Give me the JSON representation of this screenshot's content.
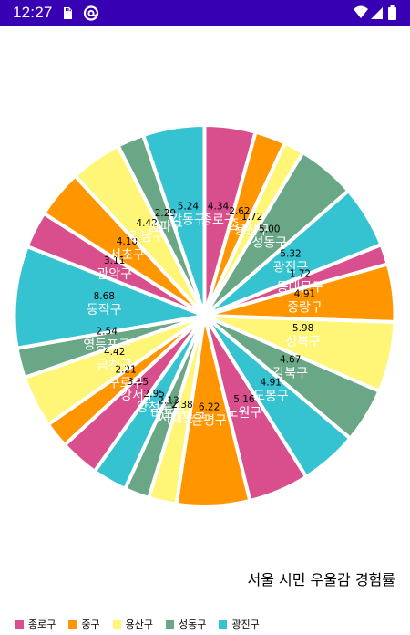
{
  "status_bar": {
    "time": "12:27",
    "left_icons": [
      "sd-card-icon",
      "vpn-at-icon"
    ],
    "right_icons": [
      "wifi-icon",
      "signal-icon",
      "battery-icon"
    ]
  },
  "chart_data": {
    "type": "pie",
    "title": "서울 시민 우울감 경험률",
    "colors": [
      "#d94e8c",
      "#ff9600",
      "#fff576",
      "#6aa786",
      "#35c2d1"
    ],
    "slice_colors": [
      "#d94e8c",
      "#ff9600",
      "#fff576",
      "#6aa786",
      "#35c2d1",
      "#d94e8c",
      "#ff9600",
      "#fff576",
      "#6aa786",
      "#35c2d1",
      "#d94e8c",
      "#ff9600",
      "#fff576",
      "#6aa786",
      "#35c2d1",
      "#d94e8c",
      "#ff9600",
      "#fff576",
      "#6aa786",
      "#35c2d1",
      "#d94e8c",
      "#ff9600",
      "#fff576",
      "#6aa786",
      "#35c2d1"
    ],
    "slices": [
      {
        "name": "종로구",
        "value": 4.34,
        "label": "4.34"
      },
      {
        "name": "중구",
        "value": 2.62,
        "label": "2.62"
      },
      {
        "name": "용산구",
        "value": 1.72,
        "label": "1.72"
      },
      {
        "name": "성동구",
        "value": 5.0,
        "label": "5.00"
      },
      {
        "name": "광진구",
        "value": 5.32,
        "label": "5.32"
      },
      {
        "name": "동대문구",
        "value": 1.72,
        "label": "1.72"
      },
      {
        "name": "중랑구",
        "value": 4.91,
        "label": "4.91"
      },
      {
        "name": "성북구",
        "value": 5.98,
        "label": "5.98"
      },
      {
        "name": "강북구",
        "value": 4.67,
        "label": "4.67"
      },
      {
        "name": "도봉구",
        "value": 4.91,
        "label": "4.91"
      },
      {
        "name": "노원구",
        "value": 5.16,
        "label": "5.16"
      },
      {
        "name": "은평구",
        "value": 6.22,
        "label": "6.22"
      },
      {
        "name": "서대문구",
        "value": 2.38,
        "label": "2.38"
      },
      {
        "name": "마포구",
        "value": 2.13,
        "label": "2.13"
      },
      {
        "name": "양천구",
        "value": 2.95,
        "label": "2.95"
      },
      {
        "name": "강서구",
        "value": 3.35,
        "label": "3.35"
      },
      {
        "name": "구로구",
        "value": 2.21,
        "label": "2.21"
      },
      {
        "name": "금천구",
        "value": 4.42,
        "label": "4.42"
      },
      {
        "name": "영등포구",
        "value": 2.54,
        "label": "2.54"
      },
      {
        "name": "동작구",
        "value": 8.68,
        "label": "8.68"
      },
      {
        "name": "관악구",
        "value": 3.11,
        "label": "3.11"
      },
      {
        "name": "서초구",
        "value": 4.1,
        "label": "4.10"
      },
      {
        "name": "강남구",
        "value": 4.42,
        "label": "4.42"
      },
      {
        "name": "송파구",
        "value": 2.29,
        "label": "2.29"
      },
      {
        "name": "강동구",
        "value": 5.24,
        "label": "5.24"
      }
    ],
    "legend": {
      "placement": "bottom-left",
      "entries": [
        {
          "name": "종로구",
          "color": "#d94e8c"
        },
        {
          "name": "중구",
          "color": "#ff9600"
        },
        {
          "name": "용산구",
          "color": "#fff576"
        },
        {
          "name": "성동구",
          "color": "#6aa786"
        },
        {
          "name": "광진구",
          "color": "#35c2d1"
        }
      ]
    }
  }
}
